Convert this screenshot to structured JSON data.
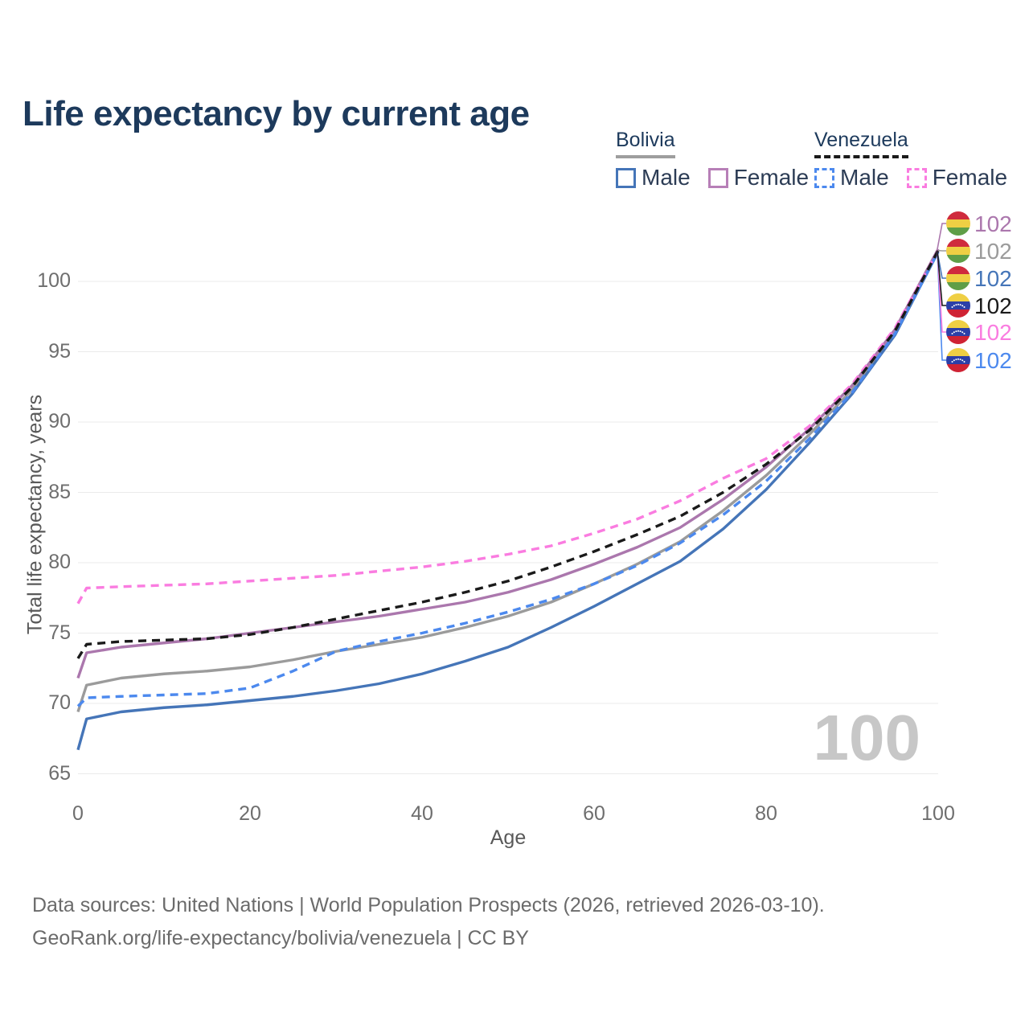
{
  "page": {
    "title": "Life expectancy by current age"
  },
  "legend": {
    "groups": [
      {
        "id": "bolivia",
        "label": "Bolivia",
        "line_style": "solid",
        "items": [
          {
            "id": "bolivia-male",
            "label": "Male",
            "color": "#4575b8",
            "dashed": false
          },
          {
            "id": "bolivia-female",
            "label": "Female",
            "color": "#b77fb7",
            "dashed": false
          }
        ]
      },
      {
        "id": "venezuela",
        "label": "Venezuela",
        "line_style": "dashed",
        "items": [
          {
            "id": "venezuela-male",
            "label": "Male",
            "color": "#4c89ee",
            "dashed": true
          },
          {
            "id": "venezuela-female",
            "label": "Female",
            "color": "#fa7ce0",
            "dashed": true
          }
        ]
      }
    ]
  },
  "chart_data": {
    "type": "line",
    "title": "Life expectancy by current age",
    "xlabel": "Age",
    "ylabel": "Total life expectancy, years",
    "x": [
      0,
      1,
      5,
      10,
      15,
      20,
      25,
      30,
      35,
      40,
      45,
      50,
      55,
      60,
      65,
      70,
      75,
      80,
      85,
      90,
      95,
      100
    ],
    "xticks": [
      "0",
      "20",
      "40",
      "60",
      "80",
      "100"
    ],
    "xtick_values": [
      0,
      20,
      40,
      60,
      80,
      100
    ],
    "yticks": [
      "65",
      "70",
      "75",
      "80",
      "85",
      "90",
      "95",
      "100"
    ],
    "ytick_values": [
      65,
      70,
      75,
      80,
      85,
      90,
      95,
      100
    ],
    "xlim": [
      0,
      100
    ],
    "ylim": [
      65,
      102.5
    ],
    "grid": "horizontal",
    "legend_position": "top-right",
    "hovered_age": "100",
    "flags": {
      "bolivia": [
        "#cf2b3d",
        "#efcf44",
        "#5f9e47"
      ],
      "venezuela": [
        "#efcf44",
        "#2b3fa8",
        "#cf2334"
      ]
    },
    "series": [
      {
        "name": "Bolivia Male",
        "country": "Bolivia",
        "sex": "Male",
        "color": "#4575b8",
        "dashed": false,
        "flag": "bolivia",
        "end_label": "102",
        "label_row": 2,
        "values": [
          66.7,
          68.9,
          69.4,
          69.7,
          69.9,
          70.2,
          70.5,
          70.9,
          71.4,
          72.1,
          73.0,
          74.0,
          75.4,
          76.9,
          78.5,
          80.1,
          82.4,
          85.2,
          88.5,
          92.0,
          96.2,
          102.1
        ]
      },
      {
        "name": "Bolivia Female",
        "country": "Bolivia",
        "sex": "Female",
        "color": "#ab77ad",
        "dashed": false,
        "flag": "bolivia",
        "end_label": "102",
        "label_row": 0,
        "values": [
          71.8,
          73.6,
          74.0,
          74.3,
          74.6,
          75.0,
          75.4,
          75.8,
          76.2,
          76.7,
          77.2,
          77.9,
          78.8,
          79.9,
          81.1,
          82.5,
          84.5,
          86.8,
          89.5,
          92.6,
          96.6,
          102.3
        ]
      },
      {
        "name": "Bolivia Total",
        "country": "Bolivia",
        "sex": "Total",
        "color": "#9b9b9b",
        "dashed": false,
        "flag": "bolivia",
        "end_label": "102",
        "label_row": 1,
        "values": [
          69.4,
          71.3,
          71.8,
          72.1,
          72.3,
          72.6,
          73.1,
          73.7,
          74.2,
          74.7,
          75.4,
          76.2,
          77.2,
          78.5,
          79.9,
          81.5,
          83.7,
          86.2,
          89.1,
          92.3,
          96.4,
          102.2
        ]
      },
      {
        "name": "Venezuela Male",
        "country": "Venezuela",
        "sex": "Male",
        "color": "#4c89ee",
        "dashed": true,
        "flag": "venezuela",
        "end_label": "102",
        "label_row": 5,
        "values": [
          69.8,
          70.4,
          70.5,
          70.6,
          70.7,
          71.1,
          72.3,
          73.7,
          74.4,
          75.0,
          75.7,
          76.5,
          77.4,
          78.5,
          79.8,
          81.4,
          83.4,
          85.8,
          88.8,
          92.1,
          96.3,
          102.1
        ]
      },
      {
        "name": "Venezuela Female",
        "country": "Venezuela",
        "sex": "Female",
        "color": "#fa7ce0",
        "dashed": true,
        "flag": "venezuela",
        "end_label": "102",
        "label_row": 4,
        "values": [
          77.1,
          78.2,
          78.3,
          78.4,
          78.5,
          78.7,
          78.9,
          79.1,
          79.4,
          79.7,
          80.1,
          80.6,
          81.2,
          82.1,
          83.1,
          84.4,
          86.0,
          87.4,
          89.7,
          92.7,
          96.7,
          102.2
        ]
      },
      {
        "name": "Venezuela Total",
        "country": "Venezuela",
        "sex": "Total",
        "color": "#1a1a1a",
        "dashed": true,
        "flag": "venezuela",
        "end_label": "102",
        "label_row": 3,
        "values": [
          73.2,
          74.2,
          74.4,
          74.5,
          74.6,
          74.9,
          75.4,
          76.0,
          76.6,
          77.2,
          77.9,
          78.7,
          79.7,
          80.8,
          82.0,
          83.3,
          85.0,
          87.0,
          89.4,
          92.5,
          96.5,
          102.2
        ]
      }
    ]
  },
  "footer": {
    "line1": "Data sources: United Nations | World Population Prospects (2026, retrieved 2026-03-10).",
    "line2": "GeoRank.org/life-expectancy/bolivia/venezuela | CC BY"
  }
}
